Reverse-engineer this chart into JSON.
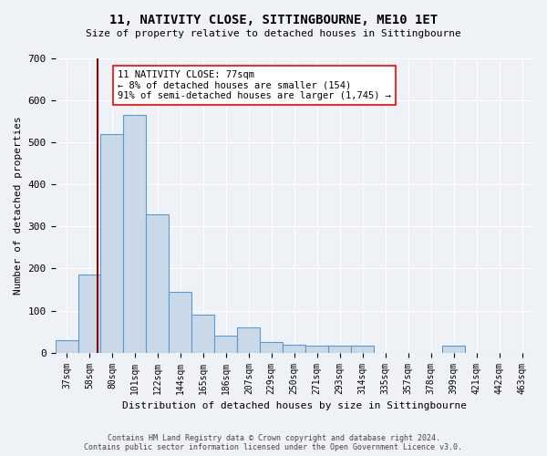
{
  "title1": "11, NATIVITY CLOSE, SITTINGBOURNE, ME10 1ET",
  "title2": "Size of property relative to detached houses in Sittingbourne",
  "xlabel": "Distribution of detached houses by size in Sittingbourne",
  "ylabel": "Number of detached properties",
  "bin_labels": [
    "37sqm",
    "58sqm",
    "80sqm",
    "101sqm",
    "122sqm",
    "144sqm",
    "165sqm",
    "186sqm",
    "207sqm",
    "229sqm",
    "250sqm",
    "271sqm",
    "293sqm",
    "314sqm",
    "335sqm",
    "357sqm",
    "378sqm",
    "399sqm",
    "421sqm",
    "442sqm",
    "463sqm"
  ],
  "bar_heights": [
    30,
    185,
    520,
    565,
    330,
    145,
    90,
    40,
    60,
    25,
    18,
    16,
    16,
    16,
    0,
    0,
    0,
    16,
    0,
    0,
    0
  ],
  "bar_color": "#c9d9e8",
  "bar_edge_color": "#5b9bd5",
  "ylim": [
    0,
    700
  ],
  "yticks": [
    0,
    100,
    200,
    300,
    400,
    500,
    600,
    700
  ],
  "property_line_label": "11 NATIVITY CLOSE: 77sqm",
  "annotation_line1": "← 8% of detached houses are smaller (154)",
  "annotation_line2": "91% of semi-detached houses are larger (1,745) →",
  "footer1": "Contains HM Land Registry data © Crown copyright and database right 2024.",
  "footer2": "Contains public sector information licensed under the Open Government Licence v3.0.",
  "background_color": "#eef2f7",
  "plot_bg_color": "#eef2f7"
}
